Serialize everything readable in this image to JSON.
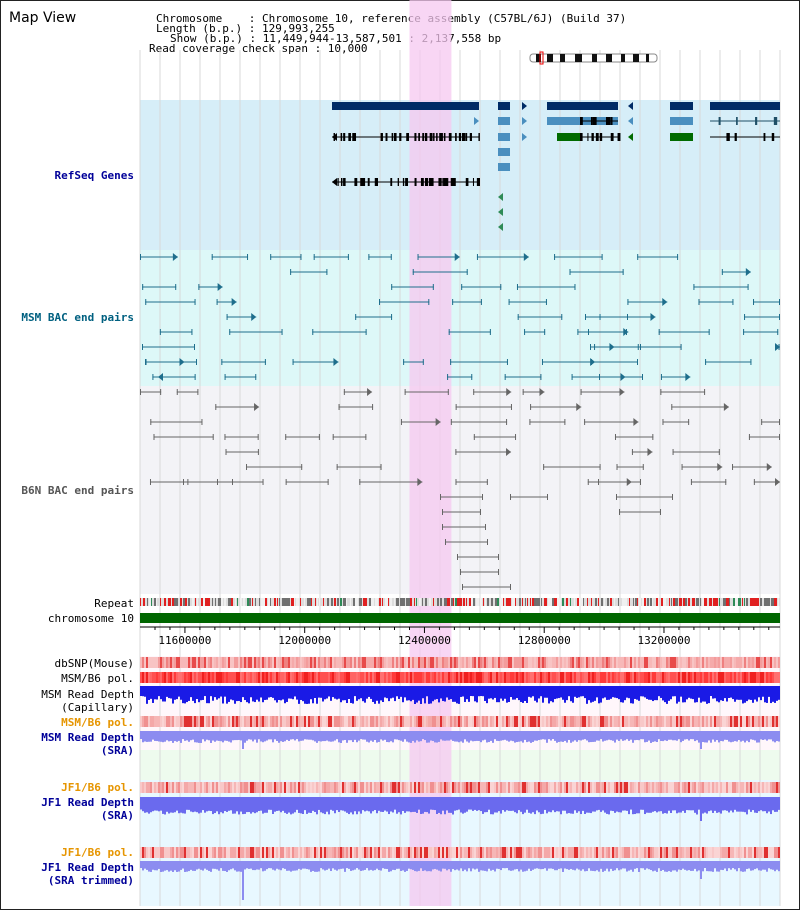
{
  "app": {
    "title": "Map View"
  },
  "header": {
    "chromosome_line": "Chromosome    : Chromosome 10, reference assembly (C57BL/6J) (Build 37)",
    "length_line": "Length (b.p.) : 129,993,255",
    "show_line": "Show (b.p.) : 11,449,944-13,587,501 : 2,137,558 bp",
    "coverage_line": "Read coverage check span : 10,000"
  },
  "tracks": {
    "refseq": "RefSeq Genes",
    "msm_bac": "MSM BAC end pairs",
    "b6n_bac": "B6N BAC end pairs",
    "repeat": "Repeat",
    "chromosome": "chromosome 10",
    "dbsnp": "dbSNP(Mouse)",
    "msm_b6_pol_1": "MSM/B6 pol.",
    "msm_depth_cap_1": "MSM Read Depth",
    "msm_depth_cap_2": "(Capillary)",
    "msm_b6_pol_2": "MSM/B6 pol.",
    "msm_depth_sra_1": "MSM Read Depth",
    "msm_depth_sra_2": "(SRA)",
    "jf1_pol_1": "JF1/B6 pol.",
    "jf1_depth_sra_1": "JF1 Read Depth",
    "jf1_depth_sra_2": "(SRA)",
    "jf1_pol_2": "JF1/B6 pol.",
    "jf1_depth_trim_1": "JF1 Read Depth",
    "jf1_depth_trim_2": "(SRA trimmed)"
  },
  "axis": {
    "ticks": [
      "11600000",
      "12000000",
      "12400000",
      "12800000",
      "13200000"
    ],
    "range": [
      11449944,
      13587501
    ]
  },
  "highlight": {
    "start": 12350000,
    "end": 12490000
  },
  "colors": {
    "refseq_bg": "#d6eef8",
    "msm_bg": "#ddf8f8",
    "b6n_bg": "#f3f3f7",
    "highlight": "#f5c8f0",
    "gene_dark": "#002b66",
    "gene_mid": "#4a8fbf",
    "gene_green": "#006b00",
    "msm_bac": "#1e6e8c",
    "b6n_bac": "#666666",
    "chromosome_bar": "#006600",
    "depth_dark": "#1a1ae6",
    "depth_light": "#8c8cf0",
    "label_navy": "#000099",
    "label_teal": "#006080",
    "label_orange": "#e69500",
    "label_gray": "#555555"
  }
}
